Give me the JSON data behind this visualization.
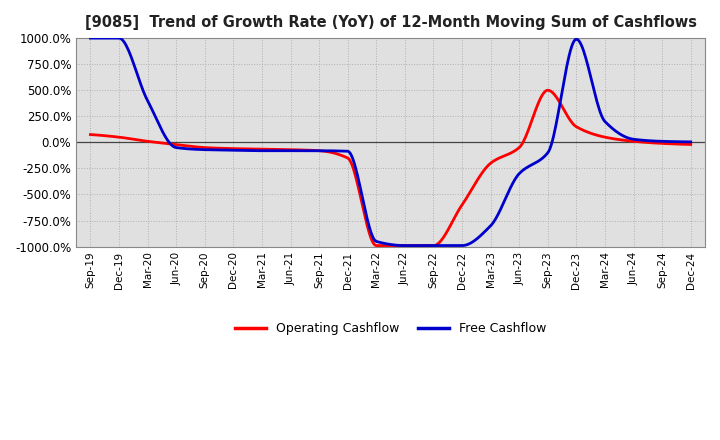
{
  "title": "[9085]  Trend of Growth Rate (YoY) of 12-Month Moving Sum of Cashflows",
  "ylim": [
    -1000,
    1000
  ],
  "yticks": [
    -1000,
    -750,
    -500,
    -250,
    0,
    250,
    500,
    750,
    1000
  ],
  "background_color": "#ffffff",
  "plot_bg_color": "#e0e0e0",
  "grid_color": "#b0b0b0",
  "line_colors": {
    "operating": "#ff0000",
    "free": "#0000cc"
  },
  "legend_labels": {
    "operating": "Operating Cashflow",
    "free": "Free Cashflow"
  },
  "x_labels": [
    "Sep-19",
    "Dec-19",
    "Mar-20",
    "Jun-20",
    "Sep-20",
    "Dec-20",
    "Mar-21",
    "Jun-21",
    "Sep-21",
    "Dec-21",
    "Mar-22",
    "Jun-22",
    "Sep-22",
    "Dec-22",
    "Mar-23",
    "Jun-23",
    "Sep-23",
    "Dec-23",
    "Mar-24",
    "Jun-24",
    "Sep-24",
    "Dec-24"
  ],
  "operating_cashflow": [
    75,
    50,
    10,
    -20,
    -50,
    -60,
    -65,
    -70,
    -80,
    -150,
    -990,
    -990,
    -990,
    -600,
    -200,
    -50,
    500,
    150,
    50,
    10,
    -10,
    -20
  ],
  "free_cashflow": [
    1000,
    1000,
    400,
    -50,
    -70,
    -75,
    -80,
    -80,
    -80,
    -85,
    -950,
    -990,
    -990,
    -990,
    -800,
    -300,
    -100,
    990,
    200,
    30,
    10,
    5
  ]
}
